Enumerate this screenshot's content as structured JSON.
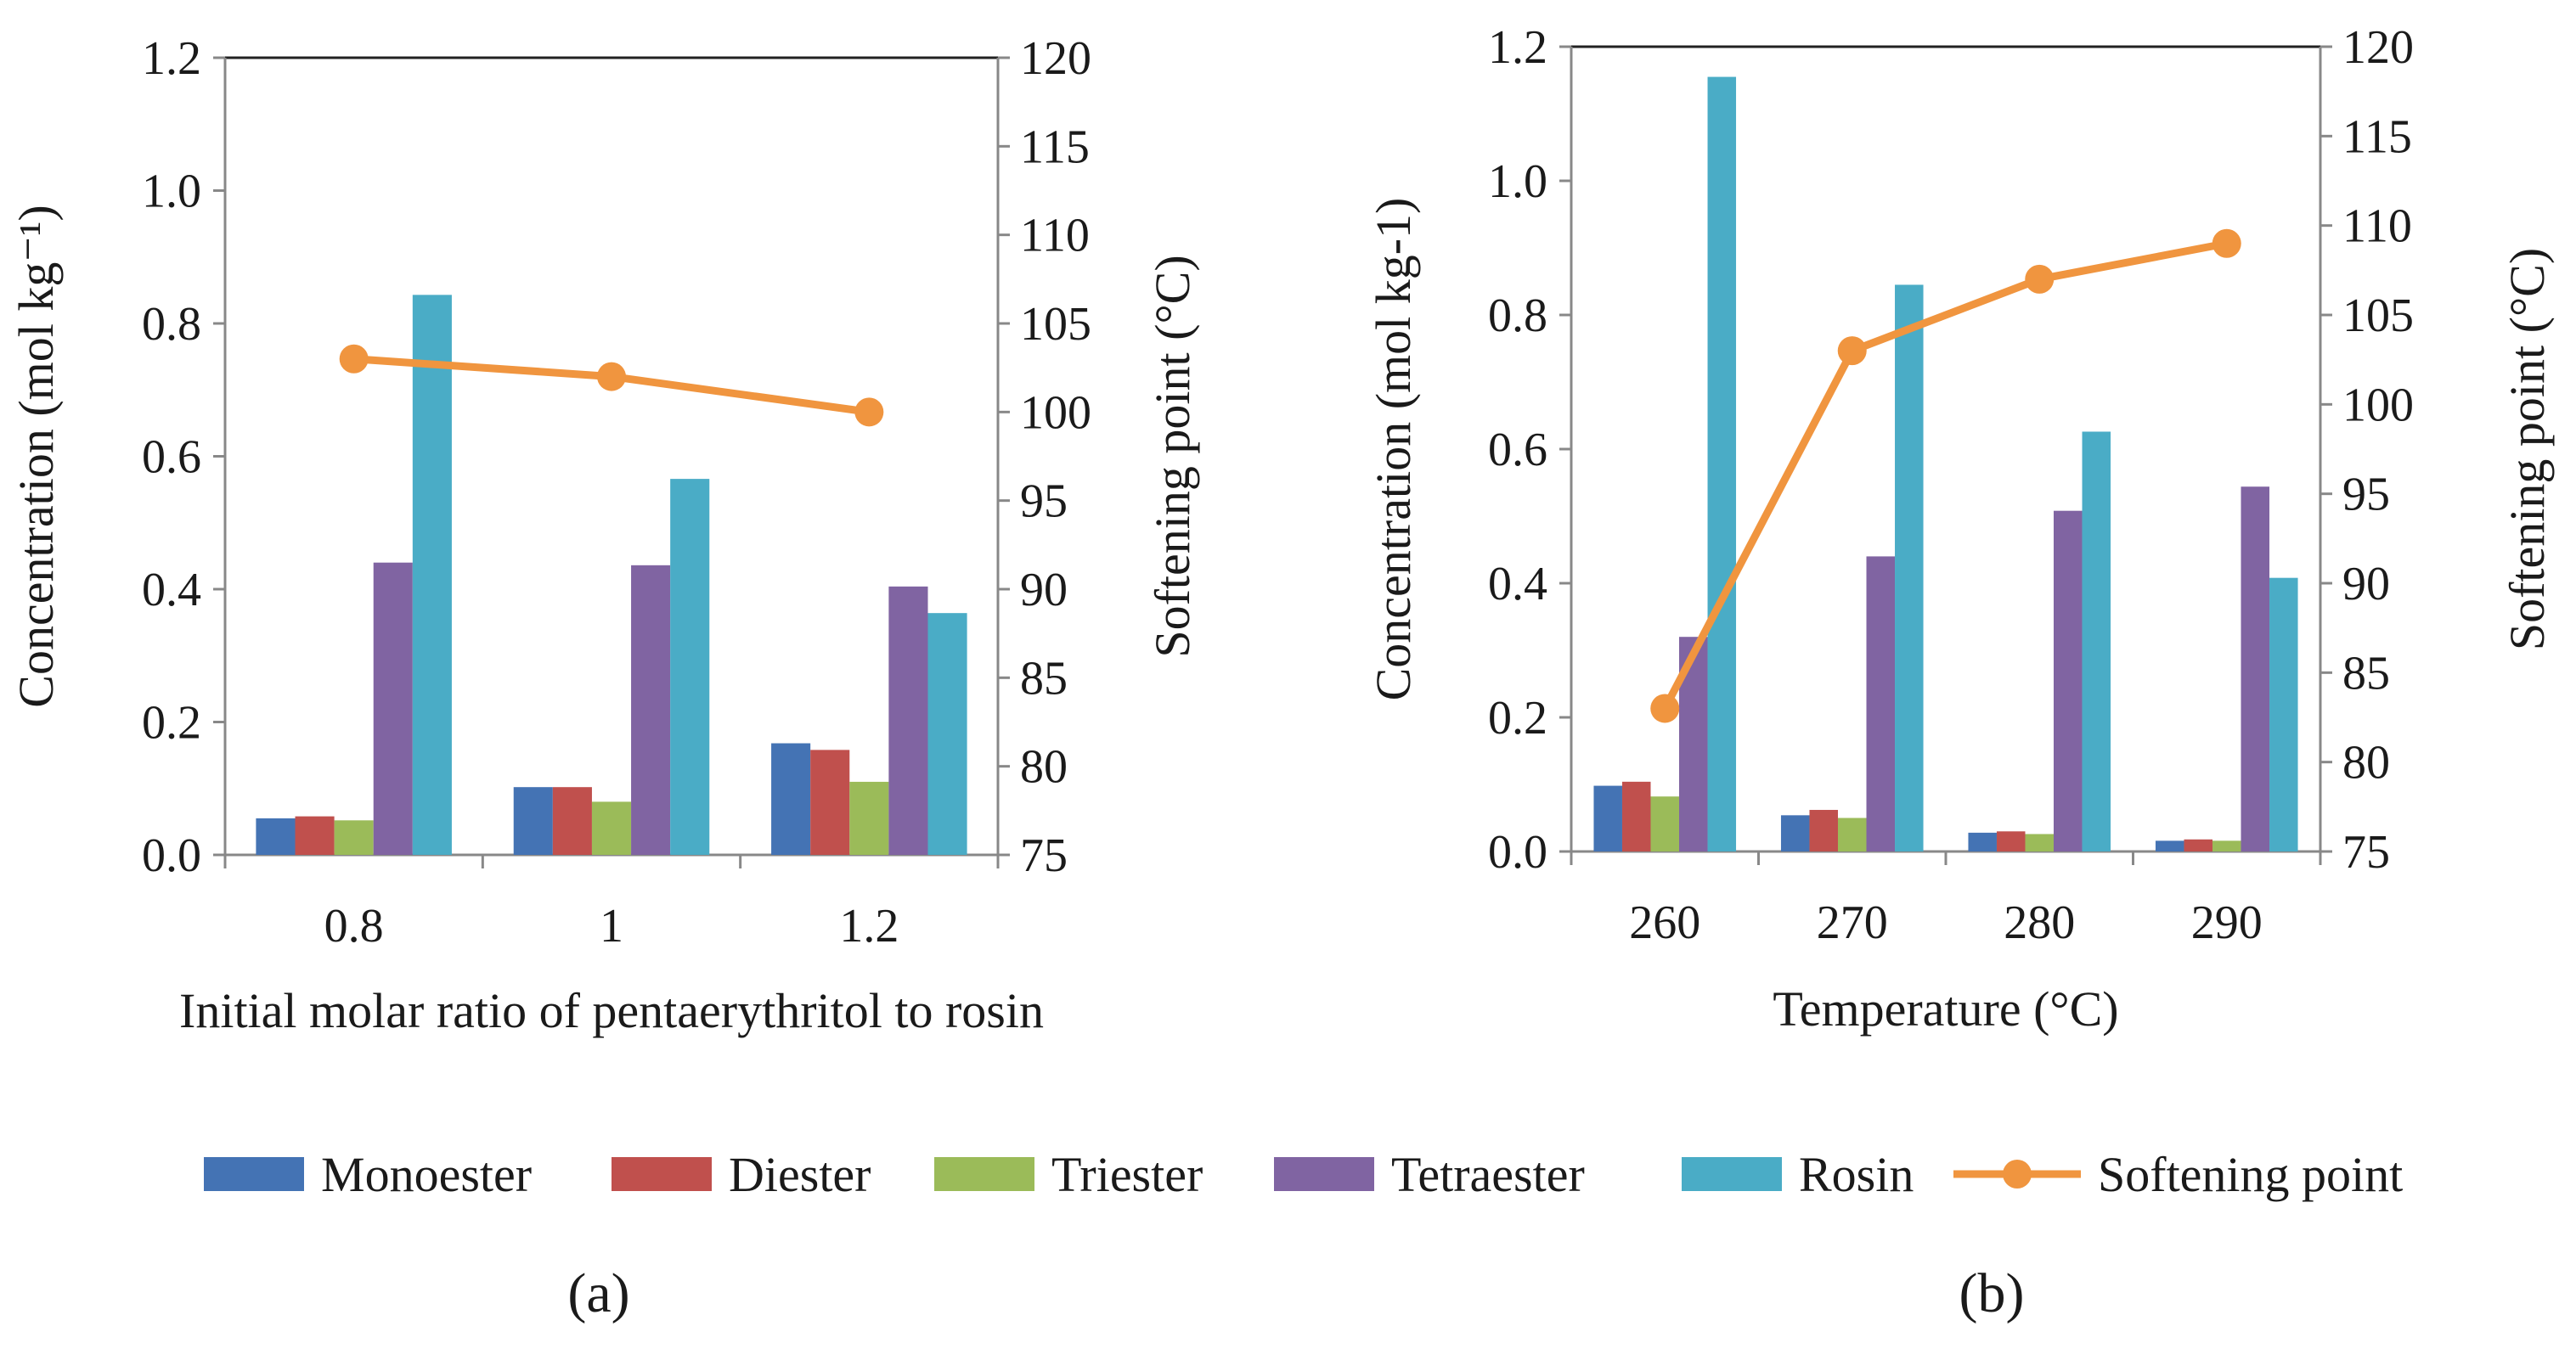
{
  "chart_data": [
    {
      "panel": "(a)",
      "type": "bar",
      "categories": [
        "0.8",
        "1",
        "1.2"
      ],
      "xlabel": "Initial molar ratio of pentaerythritol to rosin",
      "ylabel": "Concentration (mol kg⁻¹)",
      "y2label": "Softening point (°C)",
      "ylim": [
        0,
        1.2
      ],
      "y2lim": [
        75,
        120
      ],
      "yticks": [
        "0.0",
        "0.2",
        "0.4",
        "0.6",
        "0.8",
        "1.0",
        "1.2"
      ],
      "y2ticks": [
        "75",
        "80",
        "85",
        "90",
        "95",
        "100",
        "105",
        "110",
        "115",
        "120"
      ],
      "series": [
        {
          "name": "Monoester",
          "color": "#4473b4",
          "values": [
            0.055,
            0.102,
            0.168
          ]
        },
        {
          "name": "Diester",
          "color": "#c0504d",
          "values": [
            0.058,
            0.102,
            0.158
          ]
        },
        {
          "name": "Triester",
          "color": "#9bbb59",
          "values": [
            0.052,
            0.08,
            0.11
          ]
        },
        {
          "name": "Tetraester",
          "color": "#8064a2",
          "values": [
            0.44,
            0.436,
            0.404
          ]
        },
        {
          "name": "Rosin",
          "color": "#4aacc6",
          "values": [
            0.843,
            0.566,
            0.364
          ]
        }
      ],
      "line": {
        "name": "Softening point",
        "color": "#f0953f",
        "axis": "right",
        "values": [
          103,
          102,
          100
        ]
      }
    },
    {
      "panel": "(b)",
      "type": "bar",
      "categories": [
        "260",
        "270",
        "280",
        "290"
      ],
      "xlabel": "Temperature (°C)",
      "ylabel": "Concentration (mol kg-1)",
      "y2label": "Softening point (°C)",
      "ylim": [
        0,
        1.2
      ],
      "y2lim": [
        75,
        120
      ],
      "yticks": [
        "0.0",
        "0.2",
        "0.4",
        "0.6",
        "0.8",
        "1.0",
        "1.2"
      ],
      "y2ticks": [
        "75",
        "80",
        "85",
        "90",
        "95",
        "100",
        "105",
        "110",
        "115",
        "120"
      ],
      "series": [
        {
          "name": "Monoester",
          "color": "#4473b4",
          "values": [
            0.098,
            0.054,
            0.028,
            0.016
          ]
        },
        {
          "name": "Diester",
          "color": "#c0504d",
          "values": [
            0.104,
            0.062,
            0.03,
            0.018
          ]
        },
        {
          "name": "Triester",
          "color": "#9bbb59",
          "values": [
            0.082,
            0.05,
            0.026,
            0.016
          ]
        },
        {
          "name": "Tetraester",
          "color": "#8064a2",
          "values": [
            0.32,
            0.44,
            0.508,
            0.544
          ]
        },
        {
          "name": "Rosin",
          "color": "#4aacc6",
          "values": [
            1.155,
            0.845,
            0.626,
            0.408
          ]
        }
      ],
      "line": {
        "name": "Softening point",
        "color": "#f0953f",
        "axis": "right",
        "values": [
          83,
          103,
          107,
          109
        ]
      }
    }
  ],
  "legend": {
    "placement": "bottom-center",
    "items": [
      {
        "name": "Monoester",
        "color": "#4473b4",
        "kind": "bar"
      },
      {
        "name": "Diester",
        "color": "#c0504d",
        "kind": "bar"
      },
      {
        "name": "Triester",
        "color": "#9bbb59",
        "kind": "bar"
      },
      {
        "name": "Tetraester",
        "color": "#8064a2",
        "kind": "bar"
      },
      {
        "name": "Rosin",
        "color": "#4aacc6",
        "kind": "bar"
      },
      {
        "name": "Softening point",
        "color": "#f0953f",
        "kind": "line-marker"
      }
    ]
  },
  "labels": {
    "a": "(a)",
    "b": "(b)"
  }
}
